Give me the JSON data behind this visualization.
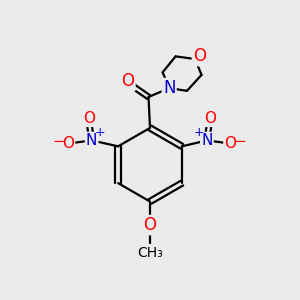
{
  "background_color": "#ebebeb",
  "bond_color": "#000000",
  "bond_width": 1.6,
  "atom_colors": {
    "O": "#ff0000",
    "N": "#0000cc",
    "C": "#000000"
  },
  "font_size_atom": 11,
  "figsize": [
    3.0,
    3.0
  ],
  "dpi": 100
}
